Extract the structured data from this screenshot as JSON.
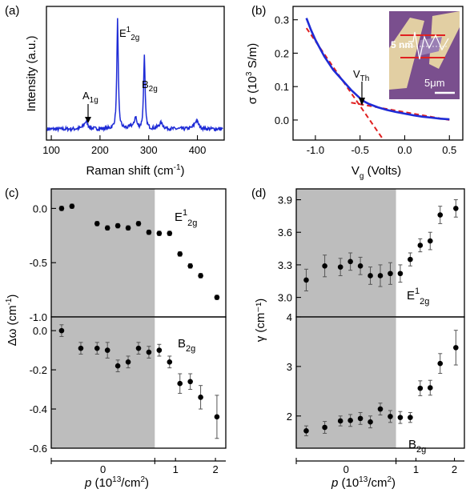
{
  "panels": {
    "a": "(a)",
    "b": "(b)",
    "c": "(c)",
    "d": "(d)"
  },
  "chart_data": [
    {
      "id": "a",
      "type": "line",
      "xlabel": "Raman shift (cm⁻¹)",
      "ylabel": "Intensity (a.u.)",
      "xlim": [
        90,
        455
      ],
      "ylim": [
        0,
        1.1
      ],
      "xticks": [
        "100",
        "200",
        "300",
        "400"
      ],
      "xtick_values": [
        100,
        200,
        300,
        400
      ],
      "color": "#1e2bd6",
      "baseline": 0.09,
      "peaks": [
        {
          "x": 171,
          "h": 0.06,
          "w": 5
        },
        {
          "x": 236,
          "h": 0.9,
          "w": 1.8
        },
        {
          "x": 264,
          "h": 0.02,
          "w": 4
        },
        {
          "x": 273,
          "h": 0.1,
          "w": 2.5
        },
        {
          "x": 291,
          "h": 0.6,
          "w": 1.8
        },
        {
          "x": 325,
          "h": 0.05,
          "w": 5
        },
        {
          "x": 398,
          "h": 0.07,
          "w": 5
        }
      ],
      "annotations": [
        {
          "text": "E",
          "sup": "1",
          "sub": "2g",
          "x": 236
        },
        {
          "text": "B",
          "sub": "2g",
          "x": 291
        },
        {
          "text": "A",
          "sub": "1g",
          "x": 171
        }
      ]
    },
    {
      "id": "b",
      "type": "line",
      "xlabel": "V",
      "xlabel_sub": "g",
      "xlabel_rest": " (Volts)",
      "ylabel": "σ (10³ S/m)",
      "xlim": [
        -1.25,
        0.65
      ],
      "ylim": [
        -0.06,
        0.34
      ],
      "xticks": [
        "-1.0",
        "-0.5",
        "0.0",
        "0.5"
      ],
      "xtick_values": [
        -1.0,
        -0.5,
        0.0,
        0.5
      ],
      "yticks": [
        "0.0",
        "0.1",
        "0.2",
        "0.3"
      ],
      "ytick_values": [
        0.0,
        0.1,
        0.2,
        0.3
      ],
      "series": [
        {
          "color": "#1e2bd6",
          "x": [
            -1.1,
            -1.05,
            -1.0,
            -0.9,
            -0.8,
            -0.7,
            -0.6,
            -0.5,
            -0.45,
            -0.4,
            -0.3,
            -0.2,
            -0.1,
            0.0,
            0.1,
            0.2,
            0.3,
            0.4,
            0.5
          ],
          "y": [
            0.305,
            0.27,
            0.24,
            0.19,
            0.15,
            0.12,
            0.09,
            0.065,
            0.055,
            0.048,
            0.038,
            0.03,
            0.024,
            0.019,
            0.014,
            0.01,
            0.007,
            0.004,
            0.002
          ]
        }
      ],
      "fit_lines": [
        {
          "color": "#e02020",
          "x": [
            -1.1,
            -0.25
          ],
          "y": [
            0.275,
            -0.055
          ]
        },
        {
          "color": "#e02020",
          "x": [
            -0.6,
            0.5
          ],
          "y": [
            0.052,
            0.0
          ]
        }
      ],
      "vth": {
        "label": "V",
        "sub": "Th",
        "x": -0.45,
        "y": 0.055
      },
      "inset": {
        "scale_label": "5μm",
        "thickness_label": "5 nm"
      }
    },
    {
      "id": "c",
      "type": "scatter",
      "xlabel": "p (10¹³/cm²)",
      "ylabel": "Δω (cm⁻¹)",
      "shade_until": 0.7,
      "subplots": [
        {
          "label": "E",
          "sup": "1",
          "sub": "2g",
          "ylim": [
            -1.0,
            0.18
          ],
          "yticks": [
            "0.0",
            "-0.5",
            "-1.0"
          ],
          "ytick_values": [
            0.0,
            -0.5,
            -1.0
          ],
          "points": [
            {
              "x": 0.07,
              "y": 0.0,
              "e": 0.02
            },
            {
              "x": 0.14,
              "y": 0.02,
              "e": 0.02
            },
            {
              "x": 0.31,
              "y": -0.14,
              "e": 0.02
            },
            {
              "x": 0.38,
              "y": -0.18,
              "e": 0.02
            },
            {
              "x": 0.45,
              "y": -0.16,
              "e": 0.02
            },
            {
              "x": 0.52,
              "y": -0.18,
              "e": 0.02
            },
            {
              "x": 0.59,
              "y": -0.14,
              "e": 0.02
            },
            {
              "x": 0.66,
              "y": -0.22,
              "e": 0.02
            },
            {
              "x": 0.73,
              "y": -0.23,
              "e": 0.02
            },
            {
              "x": 0.8,
              "y": -0.23,
              "e": 0.02
            },
            {
              "x": 0.87,
              "y": -0.42,
              "e": 0.02
            },
            {
              "x": 0.94,
              "y": -0.53,
              "e": 0.02
            },
            {
              "x": 1.01,
              "y": -0.62,
              "e": 0.02
            },
            {
              "x": 1.12,
              "y": -0.82,
              "e": 0.02
            }
          ]
        },
        {
          "label": "B",
          "sub": "2g",
          "ylim": [
            -0.6,
            0.07
          ],
          "yticks": [
            "0.0",
            "-0.2",
            "-0.4",
            "-0.6"
          ],
          "ytick_values": [
            0.0,
            -0.2,
            -0.4,
            -0.6
          ],
          "points": [
            {
              "x": 0.07,
              "y": 0.0,
              "e": 0.03
            },
            {
              "x": 0.2,
              "y": -0.09,
              "e": 0.03
            },
            {
              "x": 0.31,
              "y": -0.09,
              "e": 0.03
            },
            {
              "x": 0.38,
              "y": -0.1,
              "e": 0.04
            },
            {
              "x": 0.45,
              "y": -0.18,
              "e": 0.03
            },
            {
              "x": 0.52,
              "y": -0.16,
              "e": 0.03
            },
            {
              "x": 0.59,
              "y": -0.09,
              "e": 0.03
            },
            {
              "x": 0.66,
              "y": -0.11,
              "e": 0.03
            },
            {
              "x": 0.73,
              "y": -0.1,
              "e": 0.03
            },
            {
              "x": 0.8,
              "y": -0.16,
              "e": 0.03
            },
            {
              "x": 0.87,
              "y": -0.27,
              "e": 0.05
            },
            {
              "x": 0.94,
              "y": -0.26,
              "e": 0.04
            },
            {
              "x": 1.01,
              "y": -0.34,
              "e": 0.06
            },
            {
              "x": 1.12,
              "y": -0.44,
              "e": 0.11
            }
          ]
        }
      ],
      "xlim": [
        0,
        1.18
      ],
      "xticks": [
        "0",
        "1",
        "2"
      ],
      "xtick_values": [
        0.35,
        0.84,
        1.11
      ]
    },
    {
      "id": "d",
      "type": "scatter",
      "xlabel": "p (10¹³/cm²)",
      "ylabel": "γ (cm⁻¹)",
      "shade_until": 0.7,
      "subplots": [
        {
          "label": "E",
          "sup": "1",
          "sub": "2g",
          "ylim": [
            2.82,
            4.0
          ],
          "yticks": [
            "3.0",
            "3.3",
            "3.6",
            "3.9"
          ],
          "ytick_values": [
            3.0,
            3.3,
            3.6,
            3.9
          ],
          "points": [
            {
              "x": 0.07,
              "y": 3.16,
              "e": 0.1
            },
            {
              "x": 0.2,
              "y": 3.29,
              "e": 0.1
            },
            {
              "x": 0.31,
              "y": 3.28,
              "e": 0.08
            },
            {
              "x": 0.38,
              "y": 3.33,
              "e": 0.08
            },
            {
              "x": 0.45,
              "y": 3.29,
              "e": 0.08
            },
            {
              "x": 0.52,
              "y": 3.2,
              "e": 0.08
            },
            {
              "x": 0.59,
              "y": 3.2,
              "e": 0.1
            },
            {
              "x": 0.66,
              "y": 3.22,
              "e": 0.1
            },
            {
              "x": 0.73,
              "y": 3.22,
              "e": 0.08
            },
            {
              "x": 0.8,
              "y": 3.35,
              "e": 0.06
            },
            {
              "x": 0.87,
              "y": 3.48,
              "e": 0.06
            },
            {
              "x": 0.94,
              "y": 3.52,
              "e": 0.08
            },
            {
              "x": 1.01,
              "y": 3.76,
              "e": 0.08
            },
            {
              "x": 1.12,
              "y": 3.82,
              "e": 0.08
            }
          ]
        },
        {
          "label": "B",
          "sub": "2g",
          "ylim": [
            1.35,
            4.0
          ],
          "yticks": [
            "2",
            "3",
            "4"
          ],
          "ytick_values": [
            2,
            3,
            4
          ],
          "points": [
            {
              "x": 0.07,
              "y": 1.7,
              "e": 0.1
            },
            {
              "x": 0.2,
              "y": 1.77,
              "e": 0.12
            },
            {
              "x": 0.31,
              "y": 1.9,
              "e": 0.1
            },
            {
              "x": 0.38,
              "y": 1.91,
              "e": 0.12
            },
            {
              "x": 0.45,
              "y": 1.95,
              "e": 0.12
            },
            {
              "x": 0.52,
              "y": 1.88,
              "e": 0.12
            },
            {
              "x": 0.59,
              "y": 2.14,
              "e": 0.12
            },
            {
              "x": 0.66,
              "y": 1.99,
              "e": 0.12
            },
            {
              "x": 0.73,
              "y": 1.97,
              "e": 0.12
            },
            {
              "x": 0.8,
              "y": 1.97,
              "e": 0.1
            },
            {
              "x": 0.87,
              "y": 2.56,
              "e": 0.15
            },
            {
              "x": 0.94,
              "y": 2.57,
              "e": 0.15
            },
            {
              "x": 1.01,
              "y": 3.06,
              "e": 0.2
            },
            {
              "x": 1.12,
              "y": 3.38,
              "e": 0.35
            }
          ]
        }
      ],
      "xlim": [
        0,
        1.18
      ],
      "xticks": [
        "0",
        "1",
        "2"
      ],
      "xtick_values": [
        0.35,
        0.84,
        1.11
      ]
    }
  ]
}
